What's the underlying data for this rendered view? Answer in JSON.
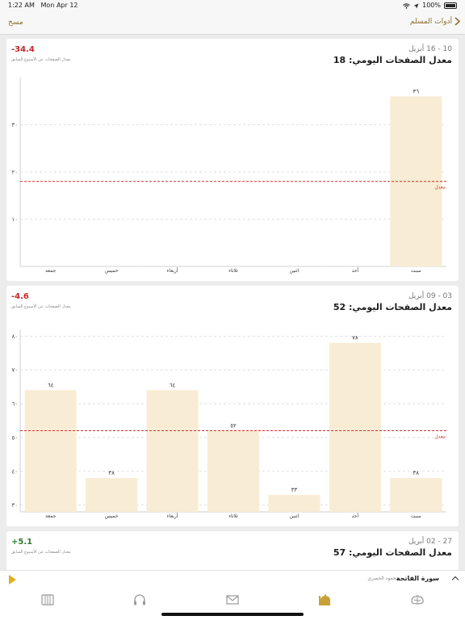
{
  "status_bar": {
    "time": "1:22 AM",
    "date": "Mon Apr 12",
    "battery": "100%"
  },
  "nav": {
    "back_label": "أدوات المسلم",
    "clear_label": "مسح"
  },
  "colors": {
    "accent": "#8a6d2c",
    "bar_fill": "#f8edd4",
    "avg_line": "#d32f2f",
    "negative": "#c62828",
    "positive": "#2e7d32",
    "play": "#e0b01c"
  },
  "cards": [
    {
      "range": "10 - 16 أبريل",
      "title": "معدل الصفحات اليومي: 18",
      "change": "-34.4",
      "change_type": "negative",
      "sub": "معدل الصفحات عن الأسبوع السابق"
    },
    {
      "range": "03 - 09 أبريل",
      "title": "معدل الصفحات اليومي: 52",
      "change": "-4.6",
      "change_type": "negative",
      "sub": "معدل الصفحات عن الأسبوع السابق"
    },
    {
      "range": "27 - 02 أبريل",
      "title": "معدل الصفحات اليومي: 57",
      "change": "+5.1",
      "change_type": "positive",
      "sub": "معدل الصفحات عن الأسبوع السابق"
    }
  ],
  "chart_data": [
    {
      "type": "bar",
      "categories": [
        "جمعة",
        "خميس",
        "أربعاء",
        "ثلاثاء",
        "اثنين",
        "أحد",
        "سبت"
      ],
      "values": [
        0,
        0,
        0,
        0,
        0,
        0,
        36
      ],
      "value_labels": [
        "",
        "",
        "",
        "",
        "",
        "",
        "٣٦"
      ],
      "average": 18,
      "average_label": "معدل",
      "ylim": [
        0,
        40
      ],
      "yticks": [
        10,
        20,
        30
      ],
      "ytick_labels": [
        "١٠",
        "٢٠",
        "٣٠"
      ],
      "grid": true
    },
    {
      "type": "bar",
      "categories": [
        "جمعة",
        "خميس",
        "أربعاء",
        "ثلاثاء",
        "اثنين",
        "أحد",
        "سبت"
      ],
      "values": [
        64,
        38,
        64,
        52,
        33,
        78,
        38
      ],
      "value_labels": [
        "٦٤",
        "٣٨",
        "٦٤",
        "٥٢",
        "٣٣",
        "٧٨",
        "٣٨"
      ],
      "average": 52,
      "average_label": "معدل",
      "ylim": [
        28,
        82
      ],
      "yticks": [
        30,
        40,
        50,
        60,
        70,
        80
      ],
      "ytick_labels": [
        "٣٠",
        "٤٠",
        "٥٠",
        "٦٠",
        "٧٠",
        "٨٠"
      ],
      "grid": true
    }
  ],
  "player": {
    "surah": "سورة الفاتحة",
    "reciter": "محمود الحصري"
  },
  "tabs": [
    {
      "icon": "quran-book-icon"
    },
    {
      "icon": "headphones-icon"
    },
    {
      "icon": "mail-icon"
    },
    {
      "icon": "mosque-icon"
    },
    {
      "icon": "brain-icon"
    }
  ]
}
